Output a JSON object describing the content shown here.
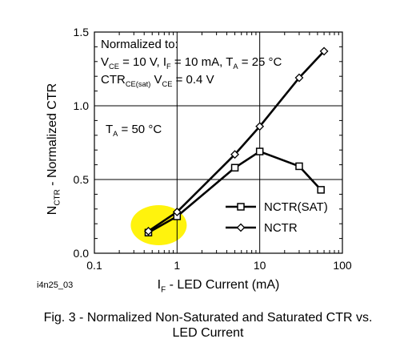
{
  "chart_data": {
    "type": "line",
    "x_scale": "log",
    "xlim": [
      0.1,
      100
    ],
    "ylim": [
      0.0,
      1.5
    ],
    "x_ticks": [
      {
        "value": 0.1,
        "label": "0.1"
      },
      {
        "value": 1,
        "label": "1"
      },
      {
        "value": 10,
        "label": "10"
      },
      {
        "value": 100,
        "label": "100"
      }
    ],
    "y_ticks": [
      {
        "value": 0.0,
        "label": "0.0"
      },
      {
        "value": 0.5,
        "label": "0.5"
      },
      {
        "value": 1.0,
        "label": "1.0"
      },
      {
        "value": 1.5,
        "label": "1.5"
      }
    ],
    "grid": true,
    "ylabel": {
      "main": "N",
      "sub": "CTR",
      "rest": " - Normalized CTR"
    },
    "xlabel": {
      "main": "I",
      "sub": "F",
      "rest": " - LED Current (mA)"
    },
    "series": [
      {
        "name": "NCTR(SAT)",
        "marker": "square",
        "x": [
          0.45,
          1.0,
          5.0,
          10.0,
          30.0,
          55.0
        ],
        "y": [
          0.14,
          0.25,
          0.58,
          0.69,
          0.59,
          0.43
        ]
      },
      {
        "name": "NCTR",
        "marker": "diamond",
        "x": [
          0.45,
          1.0,
          5.0,
          10.0,
          30.0,
          60.0
        ],
        "y": [
          0.15,
          0.28,
          0.67,
          0.86,
          1.19,
          1.37
        ]
      }
    ],
    "legend_placement": "lower-right",
    "annotations": {
      "normalized_title": "Normalized to:",
      "line1": [
        {
          "t": "V"
        },
        {
          "t": "CE",
          "sub": true
        },
        {
          "t": " = 10 V, I"
        },
        {
          "t": "F",
          "sub": true
        },
        {
          "t": " = 10 mA, T"
        },
        {
          "t": "A",
          "sub": true
        },
        {
          "t": " = 25 °C"
        }
      ],
      "line2": [
        {
          "t": "CTR"
        },
        {
          "t": "CE(sat)",
          "sub": true
        },
        {
          "t": " V"
        },
        {
          "t": "CE",
          "sub": true
        },
        {
          "t": " = 0.4 V"
        }
      ],
      "temp": [
        {
          "t": "T"
        },
        {
          "t": "A",
          "sub": true
        },
        {
          "t": " = 50 °C"
        }
      ]
    },
    "highlight_color": "#fff200"
  },
  "figure_id": "i4n25_03",
  "caption": {
    "line1": "Fig. 3 - Normalized Non-Saturated and Saturated CTR vs.",
    "line2": "LED Current"
  }
}
